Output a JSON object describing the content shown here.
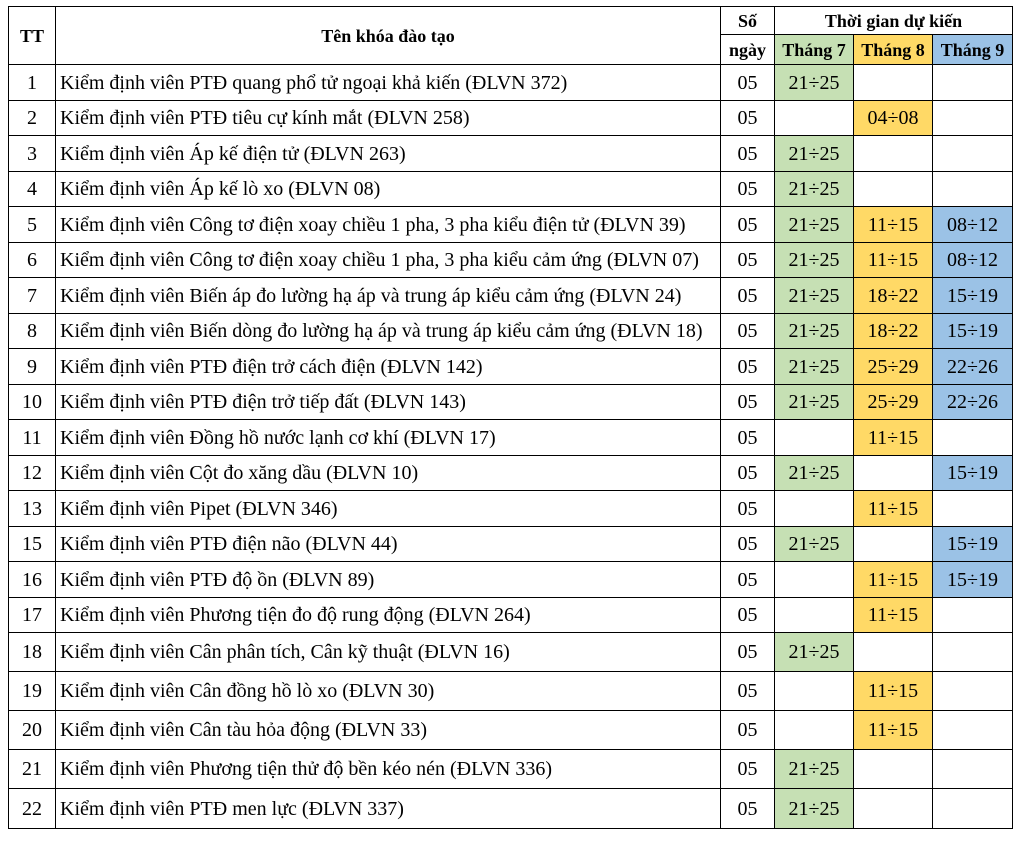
{
  "header": {
    "tt": "TT",
    "course_name": "Tên khóa đào tạo",
    "days_line1": "Số",
    "days_line2": "ngày",
    "schedule_group": "Thời gian dự kiến",
    "month7": "Tháng 7",
    "month8": "Tháng 8",
    "month9": "Tháng 9"
  },
  "colors": {
    "month7": "#c6e0b4",
    "month8": "#ffd966",
    "month9": "#9bc2e6"
  },
  "rows": [
    {
      "tt": "1",
      "name": "Kiểm định viên PTĐ quang phổ tử ngoại khả kiến (ĐLVN 372)",
      "days": "05",
      "m7": "21÷25",
      "m8": "",
      "m9": ""
    },
    {
      "tt": "2",
      "name": "Kiểm định viên PTĐ tiêu cự kính mắt (ĐLVN 258)",
      "days": "05",
      "m7": "",
      "m8": "04÷08",
      "m9": ""
    },
    {
      "tt": "3",
      "name": "Kiểm định viên Áp kế điện tử (ĐLVN 263)",
      "days": "05",
      "m7": "21÷25",
      "m8": "",
      "m9": ""
    },
    {
      "tt": "4",
      "name": "Kiểm định viên Áp kế lò xo (ĐLVN 08)",
      "days": "05",
      "m7": "21÷25",
      "m8": "",
      "m9": ""
    },
    {
      "tt": "5",
      "name": "Kiểm định viên Công tơ điện xoay chiều 1 pha, 3 pha kiểu điện tử (ĐLVN 39)",
      "days": "05",
      "m7": "21÷25",
      "m8": "11÷15",
      "m9": "08÷12"
    },
    {
      "tt": "6",
      "name": "Kiểm định viên Công tơ điện xoay chiều 1 pha, 3 pha kiểu cảm ứng (ĐLVN 07)",
      "days": "05",
      "m7": "21÷25",
      "m8": "11÷15",
      "m9": "08÷12"
    },
    {
      "tt": "7",
      "name": "Kiểm định viên Biến áp đo lường hạ áp và trung áp kiểu cảm ứng (ĐLVN 24)",
      "days": "05",
      "m7": "21÷25",
      "m8": "18÷22",
      "m9": "15÷19"
    },
    {
      "tt": "8",
      "name": "Kiểm định viên Biến dòng đo lường hạ áp và trung áp kiểu cảm ứng (ĐLVN 18)",
      "days": "05",
      "m7": "21÷25",
      "m8": "18÷22",
      "m9": "15÷19"
    },
    {
      "tt": "9",
      "name": "Kiểm định viên PTĐ điện trở cách điện (ĐLVN 142)",
      "days": "05",
      "m7": "21÷25",
      "m8": "25÷29",
      "m9": "22÷26"
    },
    {
      "tt": "10",
      "name": "Kiểm định viên PTĐ điện trở tiếp đất (ĐLVN 143)",
      "days": "05",
      "m7": "21÷25",
      "m8": "25÷29",
      "m9": "22÷26"
    },
    {
      "tt": "11",
      "name": "Kiểm định viên Đồng hồ nước lạnh cơ khí (ĐLVN 17)",
      "days": "05",
      "m7": "",
      "m8": "11÷15",
      "m9": ""
    },
    {
      "tt": "12",
      "name": "Kiểm định viên Cột đo xăng dầu (ĐLVN 10)",
      "days": "05",
      "m7": "21÷25",
      "m8": "",
      "m9": "15÷19"
    },
    {
      "tt": "13",
      "name": "Kiểm định viên Pipet (ĐLVN 346)",
      "days": "05",
      "m7": "",
      "m8": "11÷15",
      "m9": ""
    },
    {
      "tt": "15",
      "name": "Kiểm định viên PTĐ điện não (ĐLVN 44)",
      "days": "05",
      "m7": "21÷25",
      "m8": "",
      "m9": "15÷19"
    },
    {
      "tt": "16",
      "name": "Kiểm định viên PTĐ độ ồn (ĐLVN 89)",
      "days": "05",
      "m7": "",
      "m8": "11÷15",
      "m9": "15÷19"
    },
    {
      "tt": "17",
      "name": "Kiểm định viên Phương tiện đo độ rung động (ĐLVN 264)",
      "days": "05",
      "m7": "",
      "m8": "11÷15",
      "m9": ""
    },
    {
      "tt": "18",
      "name": "Kiểm định viên Cân phân tích, Cân kỹ thuật (ĐLVN 16)",
      "days": "05",
      "m7": "21÷25",
      "m8": "",
      "m9": ""
    },
    {
      "tt": "19",
      "name": "Kiểm định viên Cân đồng hồ lò xo (ĐLVN 30)",
      "days": "05",
      "m7": "",
      "m8": "11÷15",
      "m9": ""
    },
    {
      "tt": "20",
      "name": "Kiểm định viên Cân tàu hỏa động (ĐLVN 33)",
      "days": "05",
      "m7": "",
      "m8": "11÷15",
      "m9": ""
    },
    {
      "tt": "21",
      "name": "Kiểm định viên Phương tiện thử độ bền kéo nén (ĐLVN 336)",
      "days": "05",
      "m7": "21÷25",
      "m8": "",
      "m9": ""
    },
    {
      "tt": "22",
      "name": "Kiểm định viên PTĐ men lực (ĐLVN 337)",
      "days": "05",
      "m7": "21÷25",
      "m8": "",
      "m9": ""
    }
  ]
}
